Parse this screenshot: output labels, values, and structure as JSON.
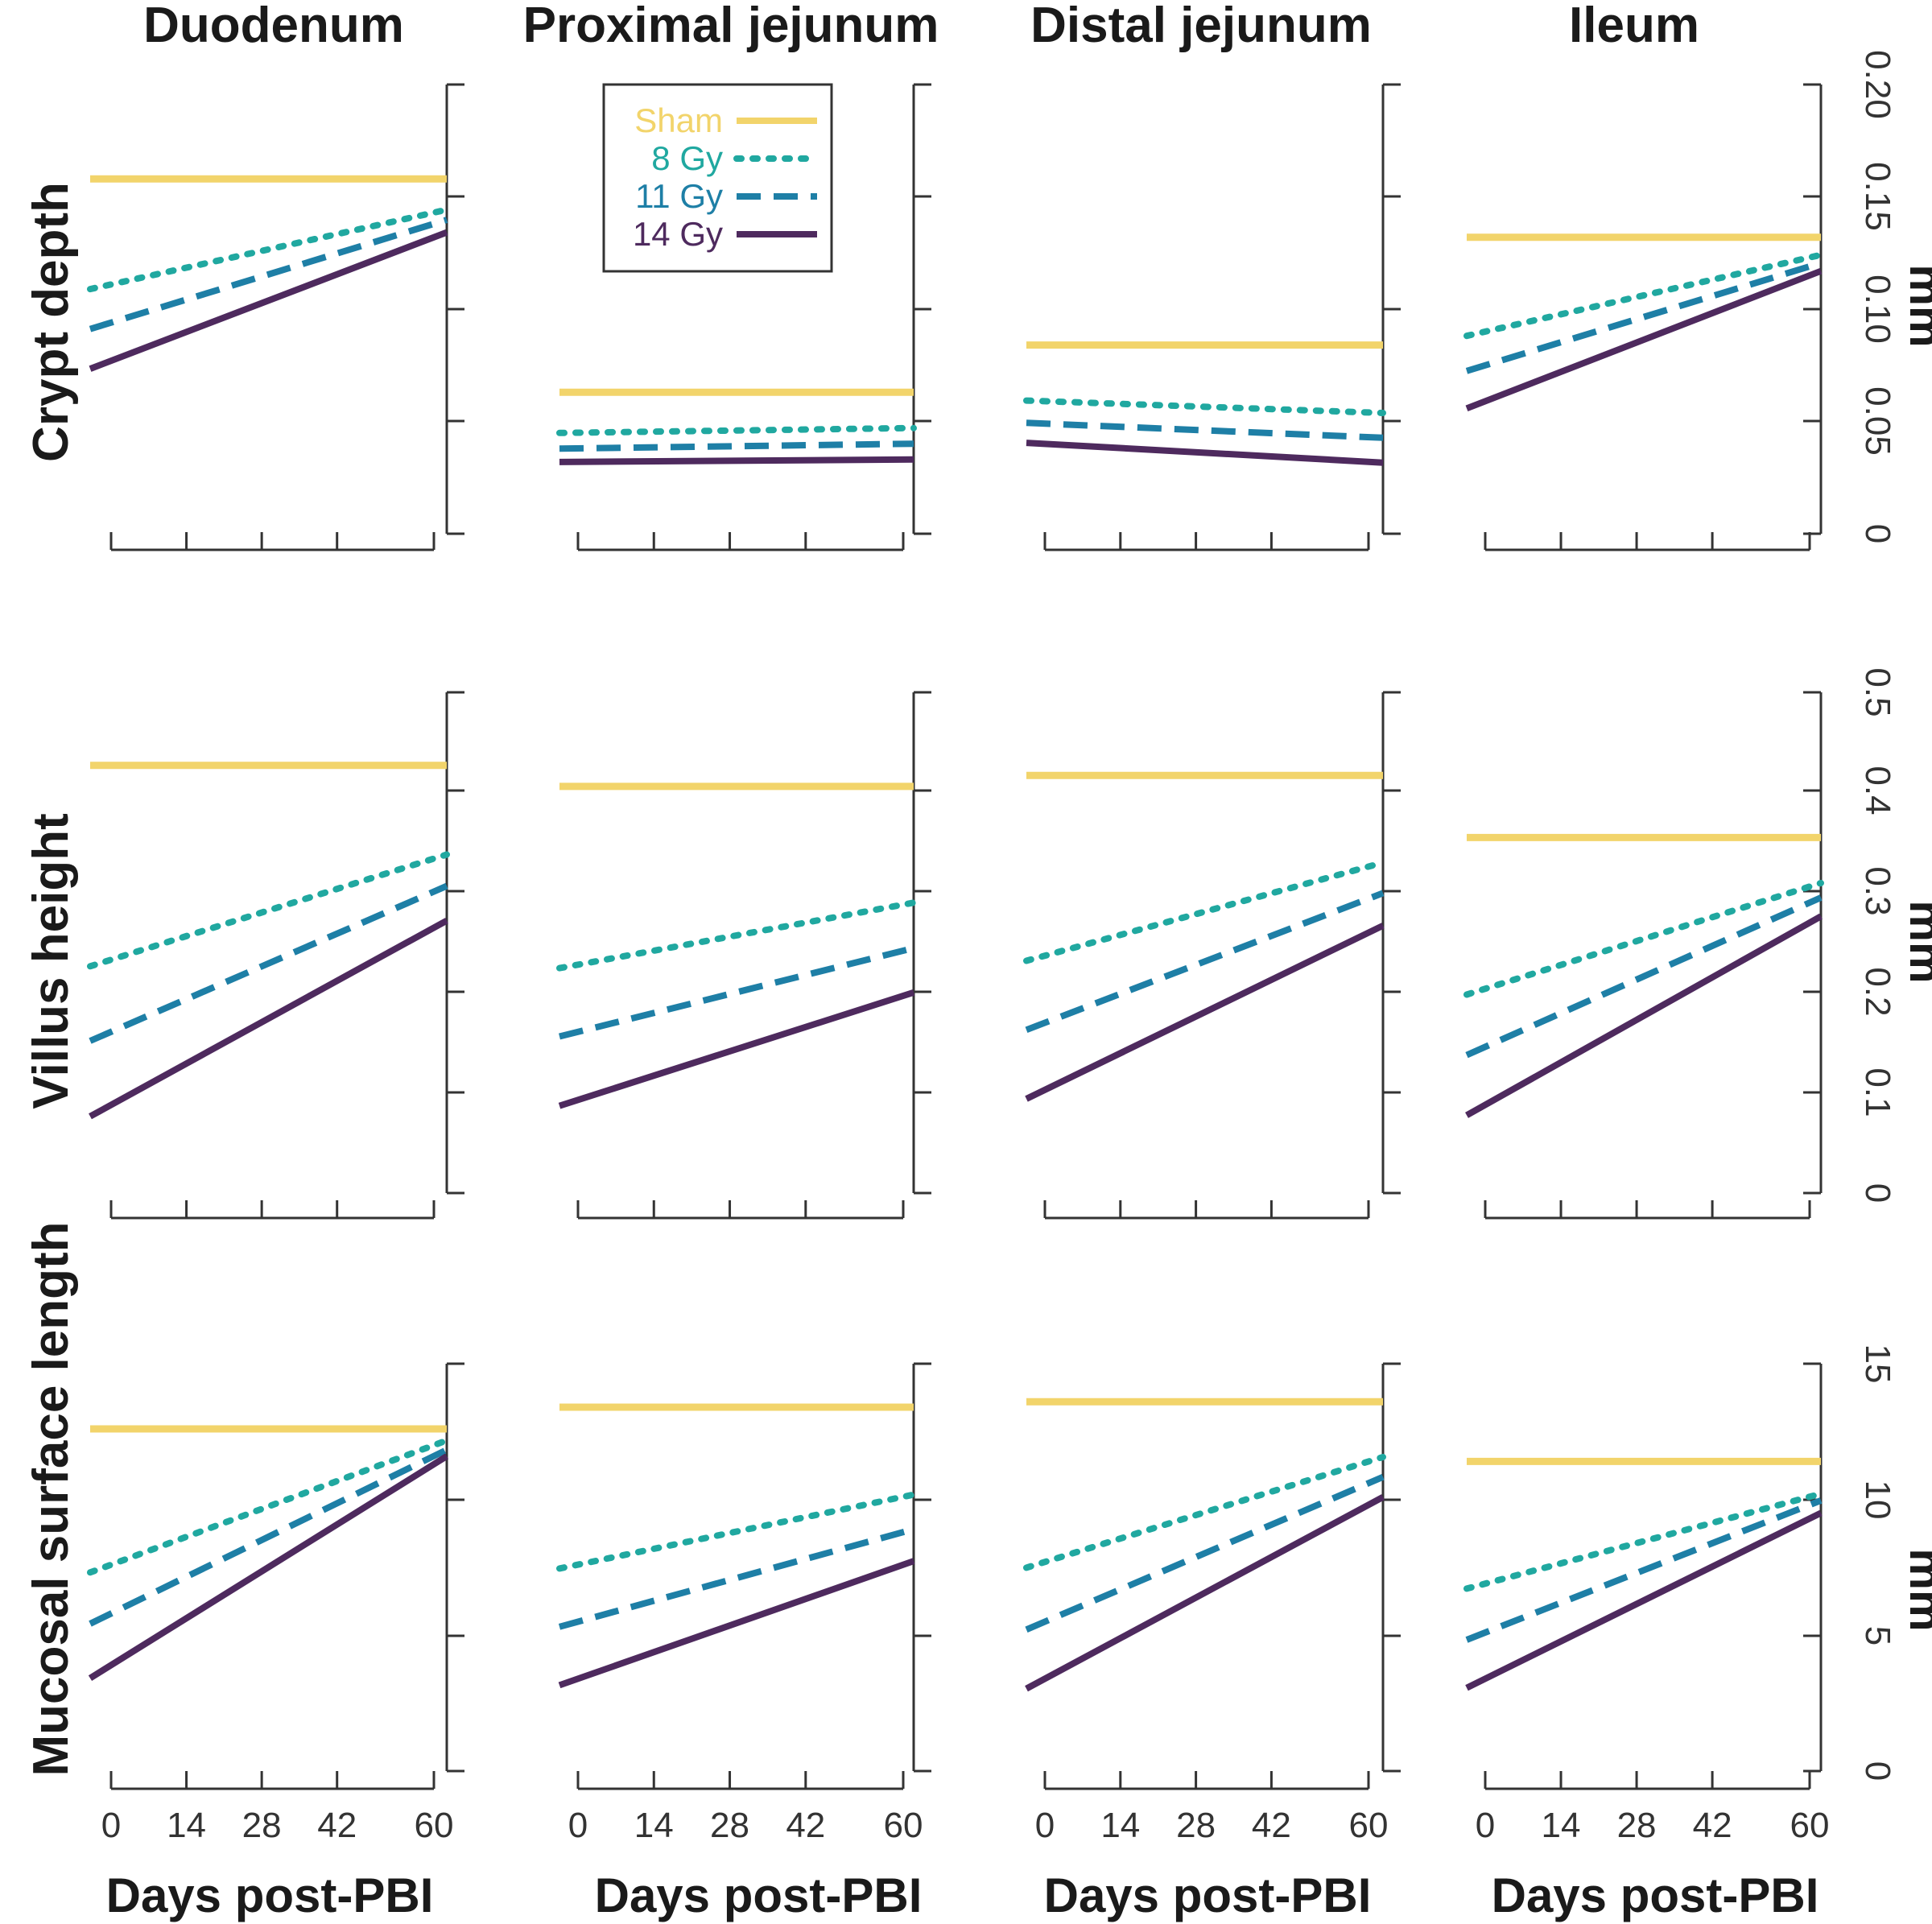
{
  "chart_data": {
    "type": "line",
    "layout": "small-multiples grid, 3 rows x 4 columns",
    "columns": [
      "Duodenum",
      "Proximal jejunum",
      "Distal jejunum",
      "Ileum"
    ],
    "rows": [
      {
        "label": "Crypt depth",
        "unit": "mm",
        "ylim": [
          0,
          0.2
        ],
        "yticks": [
          0,
          0.05,
          0.1,
          0.15,
          0.2
        ],
        "ytick_labels": [
          "0",
          "0.05",
          "0.10",
          "0.15",
          "0.20"
        ]
      },
      {
        "label": "Villus height",
        "unit": "mm",
        "ylim": [
          0,
          0.5
        ],
        "yticks": [
          0,
          0.1,
          0.2,
          0.3,
          0.4,
          0.5
        ],
        "ytick_labels": [
          "0",
          "0.1",
          "0.2",
          "0.3",
          "0.4",
          "0.5"
        ]
      },
      {
        "label": "Mucosal surface length",
        "unit": "mm",
        "ylim": [
          0,
          15
        ],
        "yticks": [
          0,
          5,
          10,
          15
        ],
        "ytick_labels": [
          "0",
          "5",
          "10",
          "15"
        ]
      }
    ],
    "xlabel": "Days post-PBI",
    "xticks": [
      0,
      14,
      28,
      42,
      60
    ],
    "xtick_labels": [
      "0",
      "14",
      "28",
      "42",
      "60"
    ],
    "xlim": [
      0,
      60
    ],
    "legend": {
      "position": "top-left of Proximal jejunum / Crypt depth panel",
      "entries": [
        {
          "name": "Sham",
          "color": "#F2D46B",
          "style": "solid"
        },
        {
          "name": "8 Gy",
          "color": "#20A8A0",
          "style": "dotted"
        },
        {
          "name": "11 Gy",
          "color": "#1E7FA6",
          "style": "dashed"
        },
        {
          "name": "14 Gy",
          "color": "#4E2A5E",
          "style": "solid"
        }
      ]
    },
    "panels": [
      {
        "row": 0,
        "col": 0,
        "series": [
          {
            "name": "Sham",
            "x": [
              0,
              60
            ],
            "y": [
              0.158,
              0.158
            ]
          },
          {
            "name": "8 Gy",
            "x": [
              0,
              60
            ],
            "y": [
              0.111,
              0.143
            ]
          },
          {
            "name": "11 Gy",
            "x": [
              0,
              60
            ],
            "y": [
              0.094,
              0.138
            ]
          },
          {
            "name": "14 Gy",
            "x": [
              0,
              60
            ],
            "y": [
              0.077,
              0.132
            ]
          }
        ]
      },
      {
        "row": 0,
        "col": 1,
        "series": [
          {
            "name": "Sham",
            "x": [
              0,
              60
            ],
            "y": [
              0.063,
              0.063
            ]
          },
          {
            "name": "8 Gy",
            "x": [
              0,
              60
            ],
            "y": [
              0.045,
              0.047
            ]
          },
          {
            "name": "11 Gy",
            "x": [
              0,
              60
            ],
            "y": [
              0.038,
              0.04
            ]
          },
          {
            "name": "14 Gy",
            "x": [
              0,
              60
            ],
            "y": [
              0.032,
              0.033
            ]
          }
        ]
      },
      {
        "row": 0,
        "col": 2,
        "series": [
          {
            "name": "Sham",
            "x": [
              0,
              60
            ],
            "y": [
              0.084,
              0.084
            ]
          },
          {
            "name": "8 Gy",
            "x": [
              0,
              60
            ],
            "y": [
              0.059,
              0.054
            ]
          },
          {
            "name": "11 Gy",
            "x": [
              0,
              60
            ],
            "y": [
              0.049,
              0.043
            ]
          },
          {
            "name": "14 Gy",
            "x": [
              0,
              60
            ],
            "y": [
              0.04,
              0.032
            ]
          }
        ]
      },
      {
        "row": 0,
        "col": 3,
        "series": [
          {
            "name": "Sham",
            "x": [
              0,
              60
            ],
            "y": [
              0.132,
              0.132
            ]
          },
          {
            "name": "8 Gy",
            "x": [
              0,
              60
            ],
            "y": [
              0.09,
              0.123
            ]
          },
          {
            "name": "11 Gy",
            "x": [
              0,
              60
            ],
            "y": [
              0.075,
              0.119
            ]
          },
          {
            "name": "14 Gy",
            "x": [
              0,
              60
            ],
            "y": [
              0.059,
              0.115
            ]
          }
        ]
      },
      {
        "row": 1,
        "col": 0,
        "series": [
          {
            "name": "Sham",
            "x": [
              0,
              60
            ],
            "y": [
              0.427,
              0.427
            ]
          },
          {
            "name": "8 Gy",
            "x": [
              0,
              60
            ],
            "y": [
              0.233,
              0.334
            ]
          },
          {
            "name": "11 Gy",
            "x": [
              0,
              60
            ],
            "y": [
              0.161,
              0.301
            ]
          },
          {
            "name": "14 Gy",
            "x": [
              0,
              60
            ],
            "y": [
              0.088,
              0.265
            ]
          }
        ]
      },
      {
        "row": 1,
        "col": 1,
        "series": [
          {
            "name": "Sham",
            "x": [
              0,
              60
            ],
            "y": [
              0.406,
              0.406
            ]
          },
          {
            "name": "8 Gy",
            "x": [
              0,
              60
            ],
            "y": [
              0.228,
              0.288
            ]
          },
          {
            "name": "11 Gy",
            "x": [
              0,
              60
            ],
            "y": [
              0.161,
              0.242
            ]
          },
          {
            "name": "14 Gy",
            "x": [
              0,
              60
            ],
            "y": [
              0.093,
              0.197
            ]
          }
        ]
      },
      {
        "row": 1,
        "col": 2,
        "series": [
          {
            "name": "Sham",
            "x": [
              0,
              60
            ],
            "y": [
              0.417,
              0.417
            ]
          },
          {
            "name": "8 Gy",
            "x": [
              0,
              60
            ],
            "y": [
              0.237,
              0.326
            ]
          },
          {
            "name": "11 Gy",
            "x": [
              0,
              60
            ],
            "y": [
              0.17,
              0.294
            ]
          },
          {
            "name": "14 Gy",
            "x": [
              0,
              60
            ],
            "y": [
              0.103,
              0.26
            ]
          }
        ]
      },
      {
        "row": 1,
        "col": 3,
        "series": [
          {
            "name": "Sham",
            "x": [
              0,
              60
            ],
            "y": [
              0.355,
              0.355
            ]
          },
          {
            "name": "8 Gy",
            "x": [
              0,
              60
            ],
            "y": [
              0.204,
              0.306
            ]
          },
          {
            "name": "11 Gy",
            "x": [
              0,
              60
            ],
            "y": [
              0.146,
              0.29
            ]
          },
          {
            "name": "14 Gy",
            "x": [
              0,
              60
            ],
            "y": [
              0.088,
              0.27
            ]
          }
        ]
      },
      {
        "row": 2,
        "col": 0,
        "series": [
          {
            "name": "Sham",
            "x": [
              0,
              60
            ],
            "y": [
              12.6,
              12.6
            ]
          },
          {
            "name": "8 Gy",
            "x": [
              0,
              60
            ],
            "y": [
              7.6,
              12.0
            ]
          },
          {
            "name": "11 Gy",
            "x": [
              0,
              60
            ],
            "y": [
              5.8,
              11.6
            ]
          },
          {
            "name": "14 Gy",
            "x": [
              0,
              60
            ],
            "y": [
              3.9,
              11.3
            ]
          }
        ]
      },
      {
        "row": 2,
        "col": 1,
        "series": [
          {
            "name": "Sham",
            "x": [
              0,
              60
            ],
            "y": [
              13.4,
              13.4
            ]
          },
          {
            "name": "8 Gy",
            "x": [
              0,
              60
            ],
            "y": [
              7.6,
              10.1
            ]
          },
          {
            "name": "11 Gy",
            "x": [
              0,
              60
            ],
            "y": [
              5.5,
              8.8
            ]
          },
          {
            "name": "14 Gy",
            "x": [
              0,
              60
            ],
            "y": [
              3.4,
              7.6
            ]
          }
        ]
      },
      {
        "row": 2,
        "col": 2,
        "series": [
          {
            "name": "Sham",
            "x": [
              0,
              60
            ],
            "y": [
              13.6,
              13.6
            ]
          },
          {
            "name": "8 Gy",
            "x": [
              0,
              60
            ],
            "y": [
              7.7,
              11.4
            ]
          },
          {
            "name": "11 Gy",
            "x": [
              0,
              60
            ],
            "y": [
              5.5,
              10.6
            ]
          },
          {
            "name": "14 Gy",
            "x": [
              0,
              60
            ],
            "y": [
              3.4,
              9.8
            ]
          }
        ]
      },
      {
        "row": 2,
        "col": 3,
        "series": [
          {
            "name": "Sham",
            "x": [
              0,
              60
            ],
            "y": [
              11.4,
              11.4
            ]
          },
          {
            "name": "8 Gy",
            "x": [
              0,
              60
            ],
            "y": [
              6.9,
              10.1
            ]
          },
          {
            "name": "11 Gy",
            "x": [
              0,
              60
            ],
            "y": [
              5.1,
              9.8
            ]
          },
          {
            "name": "14 Gy",
            "x": [
              0,
              60
            ],
            "y": [
              3.4,
              9.3
            ]
          }
        ]
      }
    ]
  }
}
